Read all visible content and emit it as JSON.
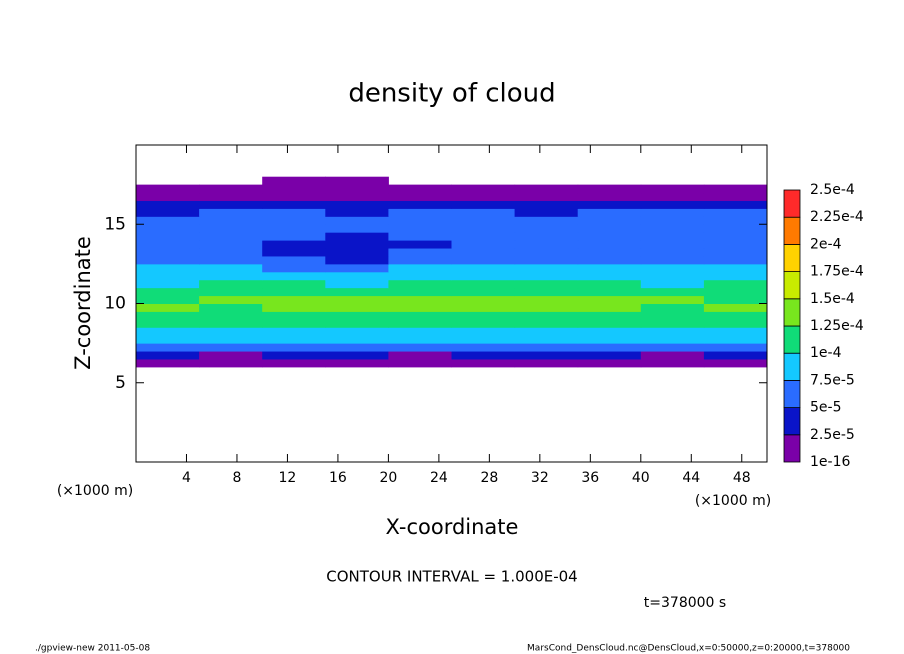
{
  "chart_data": {
    "type": "contour",
    "title": "density of cloud",
    "xlabel": "X-coordinate",
    "ylabel": "Z-coordinate",
    "xunit": "(×1000 m)",
    "yunit": "(×1000 m)",
    "contour_note": "CONTOUR INTERVAL = 1.000E-04",
    "time_label": "t=378000 s",
    "footer_left": "./gpview-new  2011-05-08",
    "footer_right": "MarsCond_DensCloud.nc@DensCloud,x=0:50000,z=0:20000,t=378000",
    "xlim": [
      0,
      50
    ],
    "ylim": [
      0,
      20
    ],
    "xticks": [
      4,
      8,
      12,
      16,
      20,
      24,
      28,
      32,
      36,
      40,
      44,
      48
    ],
    "yticks": [
      5,
      10,
      15
    ],
    "x": [
      0,
      5,
      10,
      15,
      20,
      25,
      30,
      35,
      40,
      45,
      50
    ],
    "z": [
      6,
      6.5,
      7,
      7.5,
      8,
      8.5,
      9,
      9.5,
      10,
      10.5,
      11,
      11.5,
      12,
      12.5,
      13,
      13.5,
      14,
      14.5,
      15,
      15.5,
      16,
      16.5,
      17,
      17.5,
      18
    ],
    "values": [
      [
        1e-05,
        1e-05,
        1e-05,
        1e-05,
        1e-05,
        1e-05,
        1e-05,
        1e-05,
        1e-05,
        1e-05
      ],
      [
        3.5e-05,
        1e-05,
        3.5e-05,
        3.5e-05,
        1e-05,
        3.5e-05,
        3.5e-05,
        3.5e-05,
        1e-05,
        3.5e-05
      ],
      [
        6e-05,
        6e-05,
        6e-05,
        6e-05,
        6e-05,
        6e-05,
        6e-05,
        6e-05,
        6e-05,
        6e-05
      ],
      [
        8.5e-05,
        8.5e-05,
        8.5e-05,
        8.5e-05,
        8.5e-05,
        8.5e-05,
        8.5e-05,
        8.5e-05,
        8.5e-05,
        8.5e-05
      ],
      [
        8.5e-05,
        8.5e-05,
        8.5e-05,
        8.5e-05,
        8.5e-05,
        8.5e-05,
        8.5e-05,
        8.5e-05,
        8.5e-05,
        8.5e-05
      ],
      [
        0.00011,
        0.00011,
        0.00011,
        0.00011,
        0.00011,
        0.00011,
        0.00011,
        0.00011,
        0.00011,
        0.00011
      ],
      [
        0.00011,
        0.00011,
        0.00011,
        0.00011,
        0.00011,
        0.00011,
        0.00011,
        0.00011,
        0.00011,
        0.00011
      ],
      [
        0.000135,
        0.00011,
        0.000135,
        0.000135,
        0.000135,
        0.000135,
        0.000135,
        0.000135,
        0.00011,
        0.000135
      ],
      [
        0.00011,
        0.000135,
        0.000135,
        0.000135,
        0.000135,
        0.000135,
        0.000135,
        0.000135,
        0.000135,
        0.00011
      ],
      [
        0.00011,
        0.00011,
        0.00011,
        0.00011,
        0.00011,
        0.00011,
        0.00011,
        0.00011,
        0.00011,
        0.00011
      ],
      [
        8.5e-05,
        0.00011,
        0.00011,
        8.5e-05,
        0.00011,
        0.00011,
        0.00011,
        0.00011,
        8.5e-05,
        0.00011
      ],
      [
        8.5e-05,
        8.5e-05,
        8.5e-05,
        8.5e-05,
        8.5e-05,
        8.5e-05,
        8.5e-05,
        8.5e-05,
        8.5e-05,
        8.5e-05
      ],
      [
        8.5e-05,
        8.5e-05,
        6e-05,
        6e-05,
        8.5e-05,
        8.5e-05,
        8.5e-05,
        8.5e-05,
        8.5e-05,
        8.5e-05
      ],
      [
        6e-05,
        6e-05,
        6e-05,
        3.5e-05,
        6e-05,
        6e-05,
        6e-05,
        6e-05,
        6e-05,
        6e-05
      ],
      [
        6e-05,
        6e-05,
        3.5e-05,
        3.5e-05,
        6e-05,
        6e-05,
        6e-05,
        6e-05,
        6e-05,
        6e-05
      ],
      [
        6e-05,
        6e-05,
        3.5e-05,
        3.5e-05,
        3.5e-05,
        6e-05,
        6e-05,
        6e-05,
        6e-05,
        6e-05
      ],
      [
        6e-05,
        6e-05,
        6e-05,
        3.5e-05,
        6e-05,
        6e-05,
        6e-05,
        6e-05,
        6e-05,
        6e-05
      ],
      [
        6e-05,
        6e-05,
        6e-05,
        6e-05,
        6e-05,
        6e-05,
        6e-05,
        6e-05,
        6e-05,
        6e-05
      ],
      [
        6e-05,
        6e-05,
        6e-05,
        6e-05,
        6e-05,
        6e-05,
        6e-05,
        6e-05,
        6e-05,
        6e-05
      ],
      [
        3.5e-05,
        6e-05,
        6e-05,
        3.5e-05,
        6e-05,
        6e-05,
        3.5e-05,
        6e-05,
        6e-05,
        6e-05
      ],
      [
        3.5e-05,
        3.5e-05,
        3.5e-05,
        3.5e-05,
        3.5e-05,
        3.5e-05,
        3.5e-05,
        3.5e-05,
        3.5e-05,
        3.5e-05
      ],
      [
        1e-05,
        1e-05,
        1e-05,
        1e-05,
        1e-05,
        1e-05,
        1e-05,
        1e-05,
        1e-05,
        1e-05
      ],
      [
        1e-05,
        1e-05,
        1e-05,
        1e-05,
        1e-05,
        1e-05,
        1e-05,
        1e-05,
        1e-05,
        1e-05
      ],
      [
        null,
        null,
        1e-05,
        1e-05,
        null,
        null,
        null,
        null,
        null,
        null
      ]
    ],
    "levels": [
      {
        "value": 1e-16,
        "label": "1e-16"
      },
      {
        "value": 2.5e-05,
        "label": "2.5e-5"
      },
      {
        "value": 5e-05,
        "label": "5e-5"
      },
      {
        "value": 7.5e-05,
        "label": "7.5e-5"
      },
      {
        "value": 0.0001,
        "label": "1e-4"
      },
      {
        "value": 0.000125,
        "label": "1.25e-4"
      },
      {
        "value": 0.00015,
        "label": "1.5e-4"
      },
      {
        "value": 0.000175,
        "label": "1.75e-4"
      },
      {
        "value": 0.0002,
        "label": "2e-4"
      },
      {
        "value": 0.000225,
        "label": "2.25e-4"
      },
      {
        "value": 0.00025,
        "label": "2.5e-4"
      }
    ],
    "colors": [
      "#7a00a8",
      "#0a14c8",
      "#2a6cff",
      "#14c8ff",
      "#10dc78",
      "#78e61e",
      "#c8eb00",
      "#ffd200",
      "#ff7a00",
      "#ff2a2a"
    ]
  }
}
